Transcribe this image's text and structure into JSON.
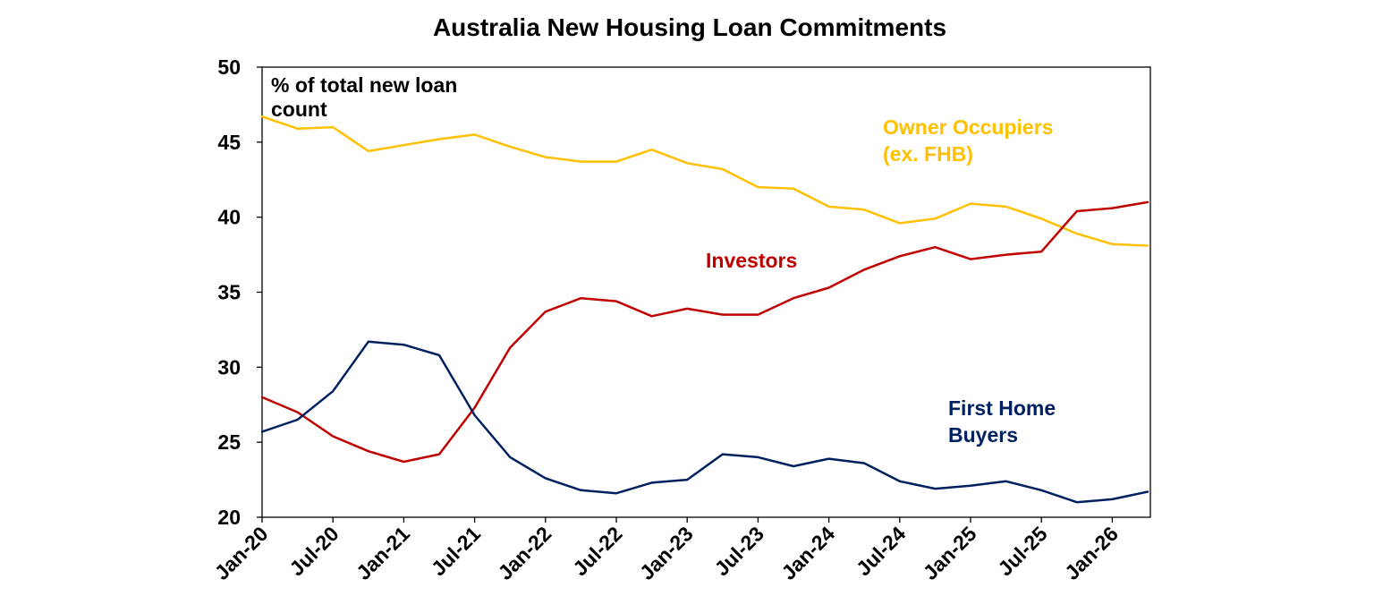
{
  "chart_data": {
    "type": "line",
    "title": "Australia New Housing Loan Commitments",
    "unit_label_lines": [
      "% of total new loan",
      "count"
    ],
    "ylim": [
      20,
      50
    ],
    "yticks": [
      20,
      25,
      30,
      35,
      40,
      45,
      50
    ],
    "x": [
      "Jan-20",
      "Apr-20",
      "Jul-20",
      "Oct-20",
      "Jan-21",
      "Apr-21",
      "Jul-21",
      "Oct-21",
      "Jan-22",
      "Apr-22",
      "Jul-22",
      "Oct-22",
      "Jan-23",
      "Apr-23",
      "Jul-23",
      "Oct-23",
      "Jan-24",
      "Apr-24",
      "Jul-24",
      "Oct-24",
      "Jan-25",
      "Apr-25",
      "Jul-25",
      "Oct-25",
      "Jan-26",
      "Apr-26"
    ],
    "xtick_labels": [
      "Jan-20",
      "Jul-20",
      "Jan-21",
      "Jul-21",
      "Jan-22",
      "Jul-22",
      "Jan-23",
      "Jul-23",
      "Jan-24",
      "Jul-24",
      "Jan-25",
      "Jul-25",
      "Jan-26"
    ],
    "xtick_every": 2,
    "colors": {
      "text": "#000000",
      "owner": "#FFC000",
      "investors": "#C00000",
      "fhb": "#002060"
    },
    "series": [
      {
        "key": "owner",
        "label_lines": [
          "Owner Occupiers",
          "(ex. FHB)"
        ],
        "values": [
          46.7,
          45.9,
          46.0,
          44.4,
          44.8,
          45.2,
          45.5,
          44.7,
          44.0,
          43.7,
          43.7,
          44.5,
          43.6,
          43.2,
          42.0,
          41.9,
          40.7,
          40.5,
          39.6,
          39.9,
          40.9,
          40.7,
          39.9,
          38.9,
          38.2,
          38.1
        ]
      },
      {
        "key": "investors",
        "label_lines": [
          "Investors"
        ],
        "values": [
          28.0,
          27.0,
          25.4,
          24.4,
          23.7,
          24.2,
          27.3,
          31.3,
          33.7,
          34.6,
          34.4,
          33.4,
          33.9,
          33.5,
          33.5,
          34.6,
          35.3,
          36.5,
          37.4,
          38.0,
          37.2,
          37.5,
          37.7,
          40.4,
          40.6,
          41.0
        ]
      },
      {
        "key": "fhb",
        "label_lines": [
          "First Home",
          "Buyers"
        ],
        "values": [
          25.7,
          26.5,
          28.4,
          31.7,
          31.5,
          30.8,
          26.8,
          24.0,
          22.6,
          21.8,
          21.6,
          22.3,
          22.5,
          24.2,
          24.0,
          23.4,
          23.9,
          23.6,
          22.4,
          21.9,
          22.1,
          22.4,
          21.8,
          21.0,
          21.2,
          21.7
        ]
      }
    ]
  }
}
